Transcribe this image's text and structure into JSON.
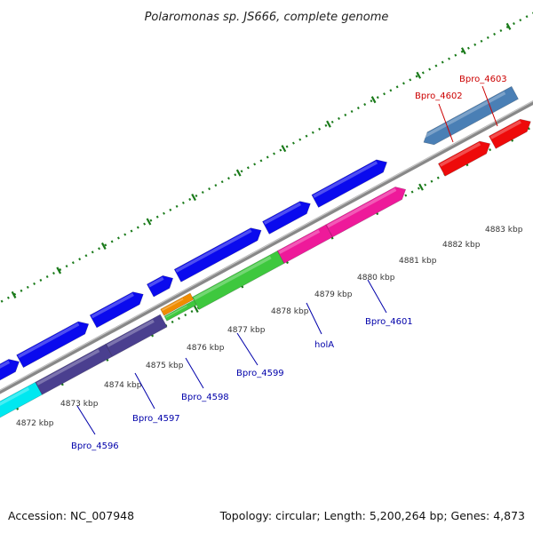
{
  "title": "Polaromonas sp. JS666, complete genome",
  "footer": {
    "accession": "Accession: NC_007948",
    "summary": "Topology: circular; Length: 5,200,264 bp; Genes: 4,873"
  },
  "colors": {
    "blue": "#0a0aee",
    "navy": "#4a3f8f",
    "steel": "#4a7fb5",
    "red": "#ee0a0a",
    "green": "#3ec83e",
    "orange": "#f08c00",
    "magenta": "#ee1a9a",
    "cyan": "#00e8f0",
    "tick": "#1a7a1a",
    "backbone": "#888888",
    "label_blue": "#0000aa",
    "label_red": "#cc0000"
  },
  "kbp_ticks": [
    {
      "kbp": 4872,
      "label": "4872 kbp"
    },
    {
      "kbp": 4873,
      "label": "4873 kbp"
    },
    {
      "kbp": 4874,
      "label": "4874 kbp"
    },
    {
      "kbp": 4875,
      "label": "4875 kbp"
    },
    {
      "kbp": 4876,
      "label": "4876 kbp"
    },
    {
      "kbp": 4877,
      "label": "4877 kbp"
    },
    {
      "kbp": 4878,
      "label": "4878 kbp"
    },
    {
      "kbp": 4879,
      "label": "4879 kbp"
    },
    {
      "kbp": 4880,
      "label": "4880 kbp"
    },
    {
      "kbp": 4881,
      "label": "4881 kbp"
    },
    {
      "kbp": 4882,
      "label": "4882 kbp"
    },
    {
      "kbp": 4883,
      "label": "4883 kbp"
    }
  ],
  "gene_labels": [
    {
      "name": "Bpro_4596",
      "color": "label_blue"
    },
    {
      "name": "Bpro_4597",
      "color": "label_blue"
    },
    {
      "name": "Bpro_4598",
      "color": "label_blue"
    },
    {
      "name": "Bpro_4599",
      "color": "label_blue"
    },
    {
      "name": "holA",
      "color": "label_blue"
    },
    {
      "name": "Bpro_4601",
      "color": "label_blue"
    },
    {
      "name": "Bpro_4602",
      "color": "label_red"
    },
    {
      "name": "Bpro_4603",
      "color": "label_red"
    }
  ]
}
